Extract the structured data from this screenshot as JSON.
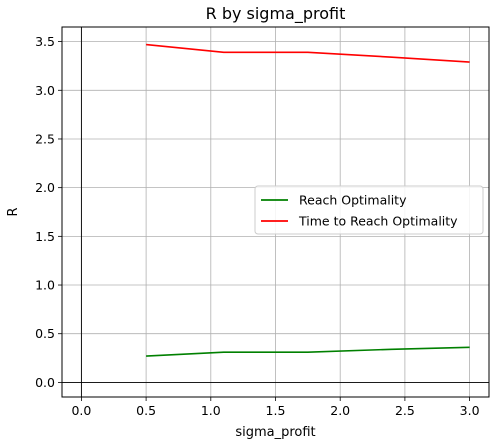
{
  "chart_data": {
    "type": "line",
    "title": "R by sigma_profit",
    "xlabel": "sigma_profit",
    "ylabel": "R",
    "xlim": [
      -0.15,
      3.15
    ],
    "ylim": [
      -0.15,
      3.65
    ],
    "xticks": [
      0.0,
      0.5,
      1.0,
      1.5,
      2.0,
      2.5,
      3.0
    ],
    "xtick_labels": [
      "0.0",
      "0.5",
      "1.0",
      "1.5",
      "2.0",
      "2.5",
      "3.0"
    ],
    "yticks": [
      0.0,
      0.5,
      1.0,
      1.5,
      2.0,
      2.5,
      3.0,
      3.5
    ],
    "ytick_labels": [
      "0.0",
      "0.5",
      "1.0",
      "1.5",
      "2.0",
      "2.5",
      "3.0",
      "3.5"
    ],
    "grid": true,
    "legend_position": "center-right",
    "series": [
      {
        "name": "Reach Optimality",
        "color": "#008000",
        "x": [
          0.5,
          1.1,
          1.75,
          2.4,
          3.0
        ],
        "values": [
          0.27,
          0.31,
          0.31,
          0.34,
          0.36
        ]
      },
      {
        "name": "Time to Reach Optimality",
        "color": "#ff0000",
        "x": [
          0.5,
          1.1,
          1.75,
          2.4,
          3.0
        ],
        "values": [
          3.47,
          3.39,
          3.39,
          3.34,
          3.29
        ]
      }
    ]
  }
}
